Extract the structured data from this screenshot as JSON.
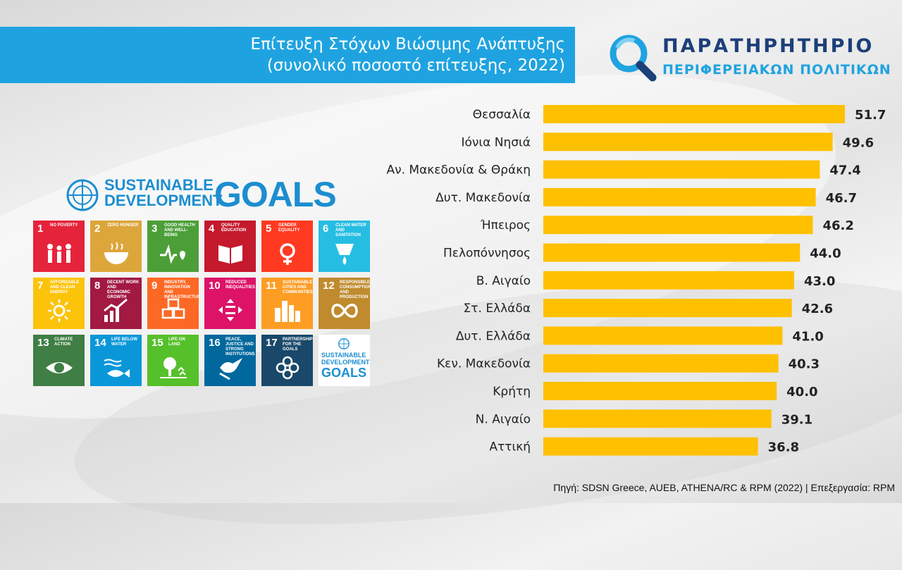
{
  "title": {
    "line1": "Επίτευξη Στόχων Βιώσιμης Ανάπτυξης",
    "line2": "(συνολικό ποσοστό επίτευξης, 2022)"
  },
  "logo": {
    "line1": "ΠΑΡΑΤΗΡΗΤΗΡΙΟ",
    "line2": "ΠΕΡΙΦΕΡΕΙΑΚΩΝ ΠΟΛΙΤΙΚΩΝ",
    "icon": "magnifier-icon"
  },
  "sdg": {
    "header_line1": "SUSTAINABLE",
    "header_line2": "DEVELOPMENT",
    "header_goals": "GOALS",
    "tiles": [
      {
        "num": "1",
        "label": "NO POVERTY",
        "color": "#e5243b",
        "icon": "family-icon"
      },
      {
        "num": "2",
        "label": "ZERO HUNGER",
        "color": "#dda63a",
        "icon": "bowl-icon"
      },
      {
        "num": "3",
        "label": "GOOD HEALTH AND WELL-BEING",
        "color": "#4c9f38",
        "icon": "heartbeat-icon"
      },
      {
        "num": "4",
        "label": "QUALITY EDUCATION",
        "color": "#c5192d",
        "icon": "book-icon"
      },
      {
        "num": "5",
        "label": "GENDER EQUALITY",
        "color": "#ff3a21",
        "icon": "gender-icon"
      },
      {
        "num": "6",
        "label": "CLEAN WATER AND SANITATION",
        "color": "#26bde2",
        "icon": "water-icon"
      },
      {
        "num": "7",
        "label": "AFFORDABLE AND CLEAN ENERGY",
        "color": "#fcc30b",
        "icon": "sun-icon"
      },
      {
        "num": "8",
        "label": "DECENT WORK AND ECONOMIC GROWTH",
        "color": "#a21942",
        "icon": "growth-icon"
      },
      {
        "num": "9",
        "label": "INDUSTRY, INNOVATION AND INFRASTRUCTURE",
        "color": "#fd6925",
        "icon": "cubes-icon"
      },
      {
        "num": "10",
        "label": "REDUCED INEQUALITIES",
        "color": "#dd1367",
        "icon": "equality-icon"
      },
      {
        "num": "11",
        "label": "SUSTAINABLE CITIES AND COMMUNITIES",
        "color": "#fd9d24",
        "icon": "city-icon"
      },
      {
        "num": "12",
        "label": "RESPONSIBLE CONSUMPTION AND PRODUCTION",
        "color": "#bf8b2e",
        "icon": "infinity-icon"
      },
      {
        "num": "13",
        "label": "CLIMATE ACTION",
        "color": "#3f7e44",
        "icon": "eye-globe-icon"
      },
      {
        "num": "14",
        "label": "LIFE BELOW WATER",
        "color": "#0a97d9",
        "icon": "fish-icon"
      },
      {
        "num": "15",
        "label": "LIFE ON LAND",
        "color": "#56c02b",
        "icon": "tree-icon"
      },
      {
        "num": "16",
        "label": "PEACE, JUSTICE AND STRONG INSTITUTIONS",
        "color": "#00689d",
        "icon": "dove-icon"
      },
      {
        "num": "17",
        "label": "PARTNERSHIPS FOR THE GOALS",
        "color": "#19486a",
        "icon": "flower-icon"
      }
    ],
    "last_tile_line1": "SUSTAINABLE",
    "last_tile_line2": "DEVELOPMENT",
    "last_tile_goals": "GOALS"
  },
  "chart_data": {
    "type": "bar",
    "orientation": "horizontal",
    "categories": [
      "Θεσσαλία",
      "Ιόνια Νησιά",
      "Αν. Μακεδονία & Θράκη",
      "Δυτ. Μακεδονία",
      "Ήπειρος",
      "Πελοπόννησος",
      "Β. Αιγαίο",
      "Στ. Ελλάδα",
      "Δυτ. Ελλάδα",
      "Κεν. Μακεδονία",
      "Κρήτη",
      "Ν. Αιγαίο",
      "Αττική"
    ],
    "values": [
      51.7,
      49.6,
      47.4,
      46.7,
      46.2,
      44.0,
      43.0,
      42.6,
      41.0,
      40.3,
      40.0,
      39.1,
      36.8
    ],
    "value_labels": [
      "51.7",
      "49.6",
      "47.4",
      "46.7",
      "46.2",
      "44.0",
      "43.0",
      "42.6",
      "41.0",
      "40.3",
      "40.0",
      "39.1",
      "36.8"
    ],
    "bar_color": "#ffc000",
    "xlim": [
      0,
      51.7
    ],
    "grid": false,
    "legend": "none"
  },
  "source": "Πηγή: SDSN Greece, AUEB, ATHENA/RC & RPM (2022) | Επεξεργασία: RPM"
}
